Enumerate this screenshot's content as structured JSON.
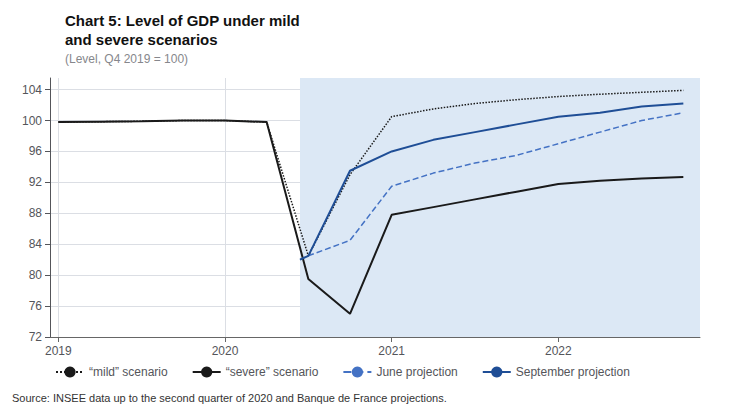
{
  "chart_data": {
    "type": "line",
    "title": "Chart 5: Level of GDP under mild\nand severe scenarios",
    "subtitle": "(Level, Q4 2019 = 100)",
    "annotations": [
      "Source: INSEE data up to the second quarter of 2020 and Banque de France projections."
    ],
    "xlim": [
      2018.95,
      2022.85
    ],
    "xticks": [
      2019,
      2020,
      2021,
      2022
    ],
    "ylim": [
      72,
      105.5
    ],
    "yticks": [
      72,
      76,
      80,
      84,
      88,
      92,
      96,
      100,
      104
    ],
    "grid": true,
    "shaded_region": {
      "x": [
        2020.45,
        2022.85
      ],
      "color": "#dce8f5"
    },
    "series": [
      {
        "name": "“mild” scenario",
        "color": "#1a1a1a",
        "line_style": "dotted",
        "x": [
          2019.0,
          2019.25,
          2019.5,
          2019.75,
          2020.0,
          2020.25,
          2020.5,
          2020.75,
          2021.0,
          2021.25,
          2021.5,
          2021.75,
          2022.0,
          2022.25,
          2022.5,
          2022.75
        ],
        "values": [
          99.8,
          99.85,
          99.9,
          100.0,
          100.0,
          99.8,
          82.5,
          93.0,
          100.5,
          101.5,
          102.2,
          102.7,
          103.1,
          103.4,
          103.65,
          103.9
        ]
      },
      {
        "name": "“severe” scenario",
        "color": "#1a1a1a",
        "line_style": "solid",
        "x": [
          2019.0,
          2019.25,
          2019.5,
          2019.75,
          2020.0,
          2020.25,
          2020.5,
          2020.75,
          2021.0,
          2021.25,
          2021.5,
          2021.75,
          2022.0,
          2022.25,
          2022.5,
          2022.75
        ],
        "values": [
          99.8,
          99.85,
          99.9,
          100.0,
          100.0,
          99.8,
          79.5,
          75.0,
          87.8,
          88.8,
          89.8,
          90.8,
          91.8,
          92.2,
          92.5,
          92.7
        ]
      },
      {
        "name": "June projection",
        "color": "#4472c4",
        "line_style": "dashed",
        "x": [
          2020.45,
          2020.5,
          2020.75,
          2021.0,
          2021.25,
          2021.5,
          2021.75,
          2022.0,
          2022.25,
          2022.5,
          2022.75
        ],
        "values": [
          82.0,
          82.5,
          84.5,
          91.5,
          93.2,
          94.5,
          95.5,
          97.0,
          98.5,
          100.0,
          101.0
        ]
      },
      {
        "name": "September projection",
        "color": "#1f4e96",
        "line_style": "solid",
        "x": [
          2020.45,
          2020.5,
          2020.75,
          2021.0,
          2021.25,
          2021.5,
          2021.75,
          2022.0,
          2022.25,
          2022.5,
          2022.75
        ],
        "values": [
          82.0,
          82.5,
          93.5,
          96.0,
          97.5,
          98.5,
          99.5,
          100.5,
          101.0,
          101.8,
          102.2
        ]
      }
    ]
  }
}
